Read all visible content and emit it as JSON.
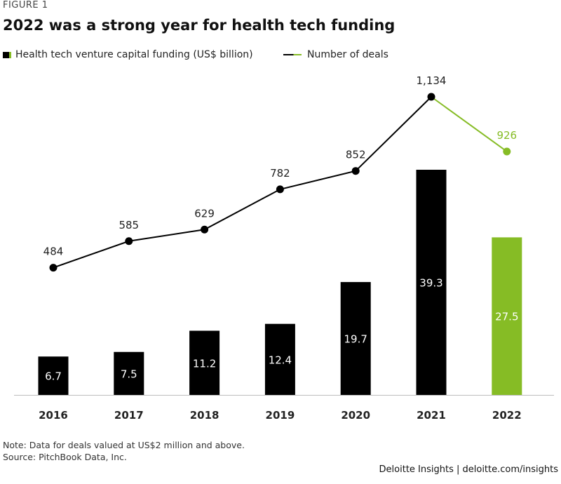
{
  "figure_label": "FIGURE 1",
  "title": "2022 was a strong year for health tech funding",
  "legend": {
    "bars_label": "Health tech venture capital funding (US$ billion)",
    "line_label": "Number of deals"
  },
  "note": "Note: Data for deals valued at US$2 million and above.",
  "source": "Source: PitchBook Data, Inc.",
  "footer": "Deloitte Insights | deloitte.com/insights",
  "colors": {
    "dark": "#000000",
    "highlight": "#86bc25",
    "axis": "#bdbdbd"
  },
  "chart_data": {
    "type": "bar",
    "title": "2022 was a strong year for health tech funding",
    "categories": [
      "2016",
      "2017",
      "2018",
      "2019",
      "2020",
      "2021",
      "2022"
    ],
    "series": [
      {
        "name": "Health tech venture capital funding (US$ billion)",
        "type": "bar",
        "values": [
          6.7,
          7.5,
          11.2,
          12.4,
          19.7,
          39.3,
          27.5
        ],
        "labels": [
          "6.7",
          "7.5",
          "11.2",
          "12.4",
          "19.7",
          "39.3",
          "27.5"
        ]
      },
      {
        "name": "Number of deals",
        "type": "line",
        "values": [
          484,
          585,
          629,
          782,
          852,
          1134,
          926
        ],
        "labels": [
          "484",
          "585",
          "629",
          "782",
          "852",
          "1,134",
          "926"
        ]
      }
    ],
    "highlight_category": "2022",
    "bar_ylim": [
      0,
      46
    ],
    "line_ylim": [
      0,
      1245
    ],
    "grid": false,
    "legend_position": "top-left"
  }
}
